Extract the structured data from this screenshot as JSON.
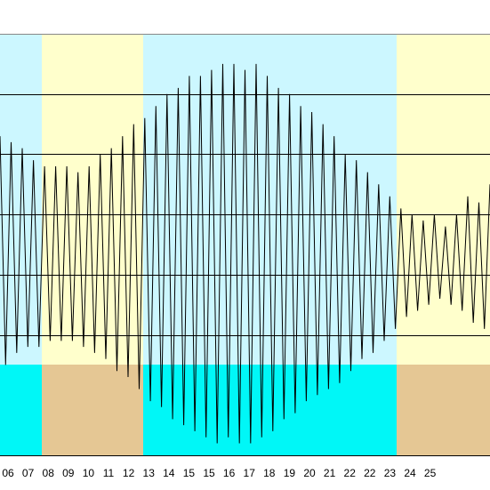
{
  "chart_data": {
    "type": "line",
    "title": "",
    "xlabel": "",
    "ylabel": "",
    "grid": true,
    "legend": "none",
    "ylim": [
      0,
      7
    ],
    "gridlines_y": [
      2,
      3,
      4,
      5,
      6
    ],
    "colors": {
      "sky": "#ccf7ff",
      "sea": "#00f7f7",
      "weekend_sky": "#ffffcc",
      "weekend_sea": "#e5c794",
      "wave": "#000000",
      "grid": "#000000"
    },
    "days": [
      "06",
      "07",
      "08",
      "09",
      "10",
      "11",
      "12",
      "13",
      "14",
      "15",
      "16",
      "17",
      "18",
      "19",
      "20",
      "21",
      "22",
      "23",
      "24",
      "25"
    ],
    "day_labels": [
      "06",
      "07",
      "08",
      "09",
      "10",
      "11",
      "12",
      "13",
      "14",
      "15",
      "15",
      "16",
      "17",
      "18",
      "19",
      "20",
      "21",
      "22",
      "22",
      "23",
      "24",
      "25"
    ],
    "highlighted_days": [
      "08",
      "09",
      "15",
      "16",
      "22",
      "23"
    ],
    "series": [
      {
        "values": [
          5.3,
          1.5,
          5.2,
          1.7,
          5.1,
          1.8,
          4.9,
          1.8,
          4.8,
          1.9,
          4.8,
          1.9,
          4.8,
          1.9,
          4.7,
          1.8,
          4.8,
          1.7,
          5.0,
          1.6,
          5.1,
          1.4,
          5.3,
          1.3,
          5.5,
          1.1,
          5.6,
          0.9,
          5.8,
          0.8,
          6.0,
          0.6,
          6.1,
          0.5,
          6.3,
          0.4,
          6.3,
          0.3,
          6.4,
          0.2,
          6.5,
          0.3,
          6.5,
          0.2,
          6.4,
          0.2,
          6.5,
          0.3,
          6.3,
          0.4,
          6.1,
          0.6,
          6.0,
          0.7,
          5.8,
          0.9,
          5.7,
          1.0,
          5.5,
          1.1,
          5.3,
          1.2,
          5.0,
          1.4,
          4.9,
          1.6,
          4.7,
          1.7,
          4.5,
          1.9,
          4.3,
          2.1,
          4.1,
          2.3,
          4.0,
          2.4,
          3.9,
          2.5,
          4.0,
          2.6,
          3.8,
          2.5,
          4.0,
          2.4,
          4.3,
          2.2,
          4.2,
          2.1,
          4.5
        ]
      }
    ]
  }
}
